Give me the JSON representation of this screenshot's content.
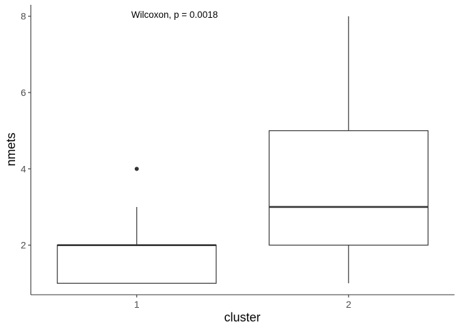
{
  "chart_data": {
    "type": "box",
    "xlabel": "cluster",
    "ylabel": "nmets",
    "annotation": "Wilcoxon, p = 0.0018",
    "categories": [
      "1",
      "2"
    ],
    "y_ticks": [
      "2",
      "4",
      "6",
      "8"
    ],
    "ylim": [
      0.7,
      8.3
    ],
    "boxes": [
      {
        "category": "1",
        "min": 1,
        "q1": 1,
        "median": 2,
        "q3": 2,
        "max": 3,
        "outliers": [
          4
        ]
      },
      {
        "category": "2",
        "min": 1,
        "q1": 2,
        "median": 3,
        "q3": 5,
        "max": 8,
        "outliers": []
      }
    ],
    "grid": false,
    "colors": {
      "box_stroke": "#333333",
      "box_fill": "#ffffff",
      "axis": "#333333",
      "tick_text": "#4d4d4d"
    }
  }
}
